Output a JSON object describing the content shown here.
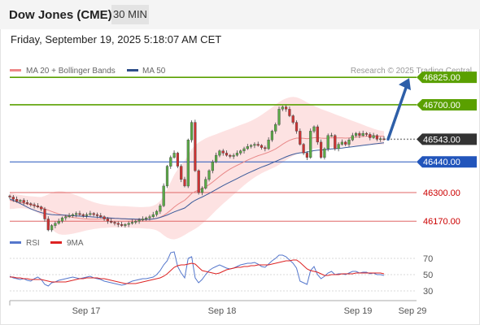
{
  "header": {
    "title": "Dow Jones (CME)",
    "interval": "30 MIN"
  },
  "datetime": "Friday, September 19, 2025 5:18:07 AM CET",
  "legend": {
    "ma20_bb": "MA 20 + Bollinger Bands",
    "ma50": "MA 50"
  },
  "credit": "Research © 2025 Trading Central",
  "rsi_legend": {
    "rsi": "RSI",
    "ma9": "9MA"
  },
  "colors": {
    "resistance": "#5aa000",
    "pivot": "#2255bb",
    "support": "#e06666",
    "current": "#333333",
    "up": "#5aaa46",
    "down": "#cc3333",
    "ma50": "#3a5a9a",
    "ma20": "#e88888",
    "rsi": "#5577cc",
    "rsi_ma": "#dd2222"
  },
  "chart_data": [
    {
      "type": "candlestick",
      "x_ticks": [
        "Sep 17",
        "Sep 18",
        "Sep 19",
        "Sep 29"
      ],
      "ylim": [
        46130,
        46870
      ],
      "levels": [
        {
          "value": 46825,
          "label": "46825.00",
          "kind": "resistance"
        },
        {
          "value": 46700,
          "label": "46700.00",
          "kind": "resistance"
        },
        {
          "value": 46543,
          "label": "46543.00",
          "kind": "current"
        },
        {
          "value": 46440,
          "label": "46440.00",
          "kind": "pivot"
        },
        {
          "value": 46300,
          "label": "46300.00",
          "kind": "support"
        },
        {
          "value": 46170,
          "label": "46170.00",
          "kind": "support"
        }
      ],
      "forecast_arrow": {
        "from": 46543,
        "to": 46825
      },
      "close": [
        46280,
        46270,
        46260,
        46265,
        46255,
        46250,
        46245,
        46240,
        46235,
        46225,
        46180,
        46130,
        46150,
        46160,
        46170,
        46185,
        46190,
        46195,
        46200,
        46205,
        46200,
        46195,
        46200,
        46205,
        46200,
        46195,
        46190,
        46180,
        46170,
        46165,
        46160,
        46155,
        46150,
        46155,
        46160,
        46165,
        46170,
        46175,
        46180,
        46185,
        46190,
        46200,
        46215,
        46240,
        46330,
        46420,
        46460,
        46480,
        46420,
        46360,
        46330,
        46540,
        46620,
        46400,
        46300,
        46320,
        46360,
        46400,
        46440,
        46470,
        46490,
        46480,
        46470,
        46465,
        46470,
        46480,
        46490,
        46500,
        46510,
        46515,
        46520,
        46515,
        46505,
        46500,
        46540,
        46580,
        46610,
        46680,
        46690,
        46680,
        46650,
        46620,
        46580,
        46520,
        46480,
        46460,
        46580,
        46600,
        46530,
        46460,
        46500,
        46560,
        46560,
        46500,
        46520,
        46530,
        46520,
        46540,
        46560,
        46570,
        46560,
        46570,
        46565,
        46550,
        46560,
        46543,
        46545,
        46543
      ],
      "ma20": [
        46265,
        46262,
        46258,
        46255,
        46252,
        46248,
        46245,
        46240,
        46236,
        46232,
        46226,
        46220,
        46214,
        46208,
        46203,
        46198,
        46194,
        46190,
        46187,
        46185,
        46183,
        46181,
        46180,
        46179,
        46179,
        46179,
        46180,
        46181,
        46181,
        46182,
        46182,
        46182,
        46181,
        46180,
        46179,
        46178,
        46177,
        46176,
        46176,
        46177,
        46178,
        46180,
        46183,
        46188,
        46196,
        46207,
        46220,
        46234,
        46246,
        46256,
        46265,
        46280,
        46296,
        46305,
        46311,
        46318,
        46326,
        46336,
        46348,
        46361,
        46374,
        46386,
        46397,
        46407,
        46416,
        46424,
        46432,
        46440,
        46448,
        46455,
        46462,
        46468,
        46473,
        46478,
        46484,
        46491,
        46499,
        46509,
        46520,
        46530,
        46538,
        46544,
        46548,
        46548,
        46547,
        46545,
        46547,
        46550,
        46550,
        46548,
        46547,
        46548,
        46550,
        46549,
        46549,
        46549,
        46548,
        46549,
        46551,
        46553,
        46554,
        46556,
        46557,
        46557,
        46558,
        46557,
        46557,
        46556
      ],
      "bb_upper": [
        46300,
        46295,
        46292,
        46290,
        46287,
        46285,
        46283,
        46282,
        46281,
        46280,
        46285,
        46292,
        46300,
        46305,
        46307,
        46306,
        46303,
        46299,
        46294,
        46288,
        46282,
        46275,
        46268,
        46262,
        46256,
        46252,
        46248,
        46245,
        46243,
        46241,
        46240,
        46239,
        46238,
        46238,
        46237,
        46236,
        46235,
        46234,
        46234,
        46235,
        46236,
        46240,
        46248,
        46262,
        46285,
        46315,
        46348,
        46380,
        46406,
        46428,
        46445,
        46470,
        46498,
        46516,
        46528,
        46538,
        46547,
        46554,
        46560,
        46566,
        46572,
        46578,
        46584,
        46590,
        46596,
        46602,
        46608,
        46614,
        46620,
        46627,
        46635,
        46644,
        46654,
        46665,
        46676,
        46688,
        46700,
        46712,
        46722,
        46729,
        46734,
        46736,
        46734,
        46728,
        46720,
        46711,
        46703,
        46695,
        46688,
        46681,
        46675,
        46669,
        46663,
        46657,
        46651,
        46645,
        46639,
        46633,
        46627,
        46621,
        46615,
        46609,
        46603,
        46597,
        46591,
        46586,
        46582,
        46580
      ],
      "bb_lower": [
        46225,
        46226,
        46228,
        46229,
        46228,
        46226,
        46222,
        46216,
        46208,
        46198,
        46180,
        46158,
        46136,
        46120,
        46111,
        46108,
        46108,
        46110,
        46113,
        46116,
        46120,
        46124,
        46128,
        46131,
        46134,
        46136,
        46138,
        46139,
        46140,
        46141,
        46141,
        46141,
        46141,
        46140,
        46140,
        46139,
        46138,
        46138,
        46137,
        46136,
        46135,
        46133,
        46128,
        46119,
        46106,
        46095,
        46089,
        46087,
        46091,
        46098,
        46107,
        46117,
        46126,
        46135,
        46145,
        46158,
        46172,
        46187,
        46203,
        46219,
        46234,
        46249,
        46263,
        46277,
        46291,
        46305,
        46319,
        46333,
        46346,
        46358,
        46369,
        46379,
        46388,
        46396,
        46403,
        46410,
        46418,
        46427,
        46437,
        46448,
        46458,
        46467,
        46475,
        46482,
        46488,
        46493,
        46497,
        46500,
        46502,
        46503,
        46504,
        46505,
        46506,
        46507,
        46508,
        46509,
        46510,
        46511,
        46512,
        46513,
        46514,
        46515,
        46516,
        46517,
        46518,
        46519,
        46519,
        46520
      ],
      "ma50": [
        46270,
        46265,
        46258,
        46250,
        46242,
        46234,
        46226,
        46220,
        46214,
        46209,
        46205,
        46202,
        46200,
        46199,
        46198,
        46198,
        46197,
        46196,
        46195,
        46194,
        46193,
        46192,
        46191,
        46190,
        46189,
        46188,
        46187,
        46186,
        46185,
        46184,
        46183,
        46182,
        46181,
        46181,
        46180,
        46180,
        46179,
        46179,
        46178,
        46178,
        46178,
        46180,
        46183,
        46187,
        46192,
        46198,
        46205,
        46212,
        46218,
        46224,
        46230,
        46242,
        46255,
        46265,
        46273,
        46280,
        46288,
        46296,
        46305,
        46314,
        46323,
        46332,
        46340,
        46348,
        46356,
        46364,
        46372,
        46380,
        46388,
        46395,
        46402,
        46409,
        46416,
        46422,
        46428,
        46435,
        46442,
        46449,
        46456,
        46463,
        46469,
        46474,
        46478,
        46481,
        46483,
        46485,
        46488,
        46491,
        46493,
        46494,
        46495,
        46497,
        46499,
        46500,
        46502,
        46503,
        46505,
        46507,
        46509,
        46511,
        46513,
        46515,
        46517,
        46519,
        46521,
        46523,
        46525,
        46527
      ]
    },
    {
      "type": "line",
      "y_ticks": [
        70,
        50,
        30
      ],
      "ylim": [
        20,
        80
      ],
      "rsi": [
        48,
        46,
        45,
        44,
        45,
        43,
        42,
        45,
        47,
        44,
        38,
        36,
        40,
        41,
        43,
        44,
        45,
        46,
        47,
        46,
        45,
        46,
        47,
        48,
        46,
        45,
        44,
        42,
        41,
        40,
        39,
        38,
        37,
        38,
        40,
        42,
        43,
        44,
        45,
        45,
        46,
        47,
        50,
        55,
        62,
        67,
        77,
        78,
        60,
        52,
        46,
        70,
        72,
        46,
        40,
        44,
        50,
        55,
        58,
        60,
        62,
        60,
        58,
        57,
        58,
        60,
        62,
        63,
        64,
        64,
        65,
        63,
        60,
        59,
        63,
        67,
        70,
        74,
        74,
        72,
        68,
        64,
        58,
        42,
        40,
        38,
        55,
        60,
        50,
        45,
        48,
        52,
        54,
        50,
        51,
        51,
        50,
        52,
        54,
        54,
        52,
        53,
        53,
        51,
        52,
        50,
        50,
        49
      ],
      "rsi_ma": [
        47,
        47,
        46,
        46,
        45,
        45,
        44,
        44,
        44,
        44,
        43,
        42,
        41,
        41,
        41,
        41,
        41,
        42,
        43,
        44,
        45,
        45,
        46,
        46,
        46,
        46,
        45,
        45,
        44,
        43,
        42,
        41,
        40,
        39,
        39,
        39,
        39,
        40,
        41,
        42,
        43,
        44,
        45,
        46,
        48,
        51,
        55,
        59,
        61,
        62,
        62,
        63,
        64,
        63,
        59,
        55,
        54,
        53,
        52,
        51,
        52,
        54,
        56,
        57,
        58,
        59,
        59,
        60,
        60,
        61,
        61,
        62,
        62,
        62,
        62,
        63,
        64,
        65,
        66,
        67,
        67,
        68,
        68,
        65,
        61,
        57,
        55,
        54,
        53,
        51,
        49,
        49,
        50,
        50,
        50,
        51,
        51,
        51,
        51,
        52,
        52,
        52,
        52,
        52,
        52,
        52,
        52,
        51
      ]
    }
  ]
}
